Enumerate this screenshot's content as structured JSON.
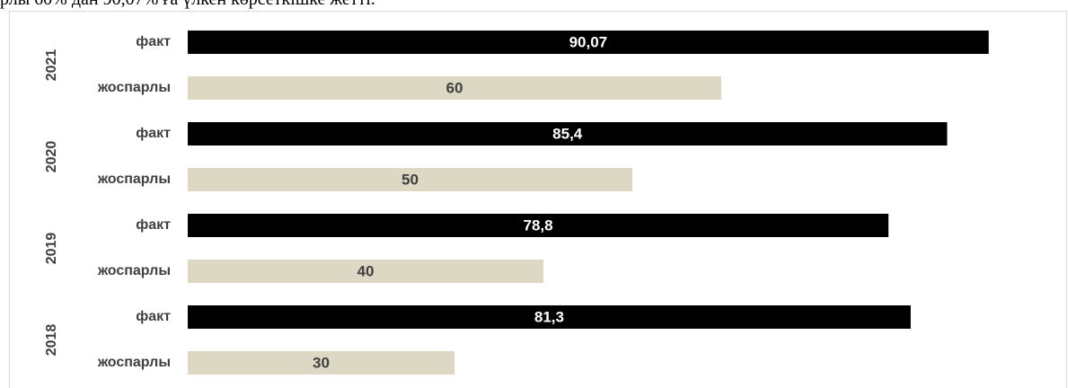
{
  "header_text": "рлы 60% дан 90,07% ға үлкен көрсеткішке жетті.",
  "chart_data": {
    "type": "bar",
    "orientation": "horizontal",
    "xlim": [
      0,
      100
    ],
    "grid": false,
    "legend": "none",
    "groups": [
      {
        "year": "2021",
        "bars": [
          {
            "category": "факт",
            "value": 90.07,
            "label": "90,07"
          },
          {
            "category": "жоспарлы",
            "value": 60,
            "label": "60"
          }
        ]
      },
      {
        "year": "2020",
        "bars": [
          {
            "category": "факт",
            "value": 85.4,
            "label": "85,4"
          },
          {
            "category": "жоспарлы",
            "value": 50,
            "label": "50"
          }
        ]
      },
      {
        "year": "2019",
        "bars": [
          {
            "category": "факт",
            "value": 78.8,
            "label": "78,8"
          },
          {
            "category": "жоспарлы",
            "value": 40,
            "label": "40"
          }
        ]
      },
      {
        "year": "2018",
        "bars": [
          {
            "category": "факт",
            "value": 81.3,
            "label": "81,3"
          },
          {
            "category": "жоспарлы",
            "value": 30,
            "label": "30"
          }
        ]
      }
    ],
    "colors": {
      "факт": "#000000",
      "жоспарлы": "#ddd8c4",
      "label_on_fact": "#ffffff",
      "label_on_plan": "#404040"
    }
  }
}
